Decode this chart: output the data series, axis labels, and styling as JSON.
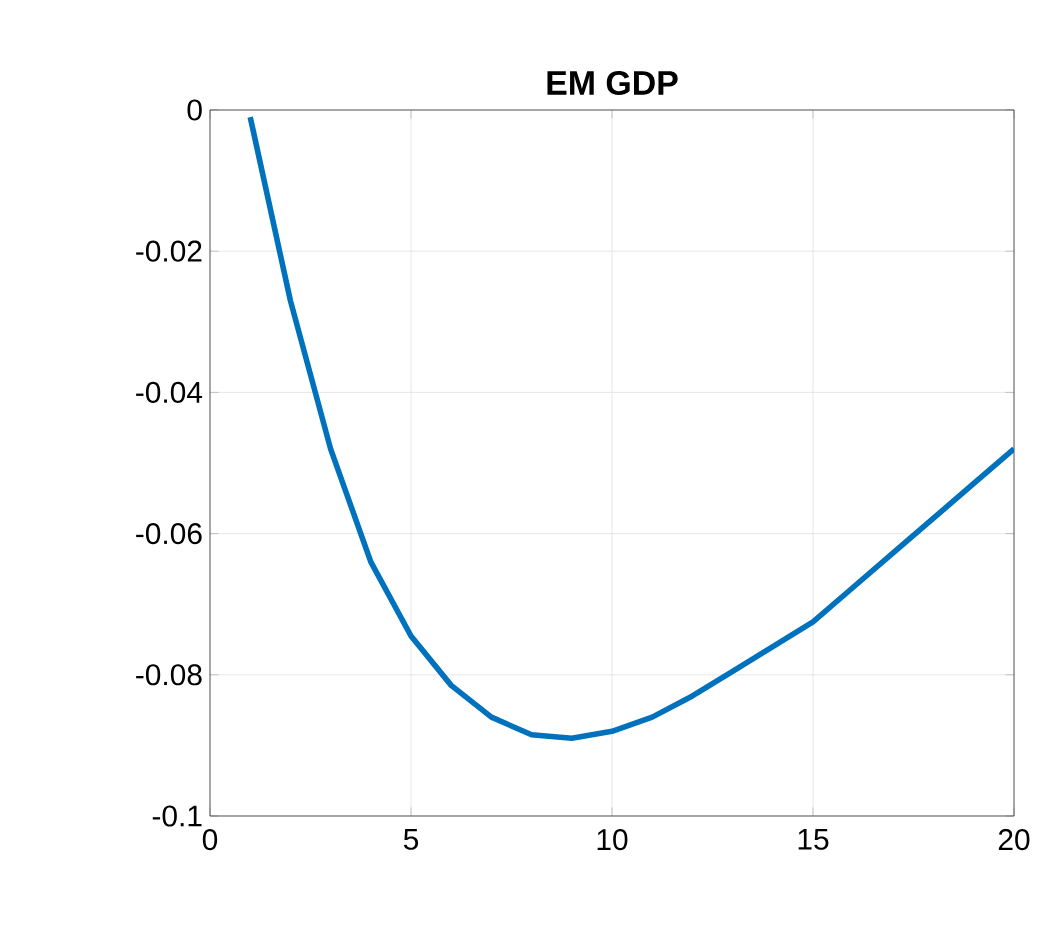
{
  "chart_data": {
    "type": "line",
    "title": "EM GDP",
    "x": [
      1,
      2,
      3,
      4,
      5,
      6,
      7,
      8,
      9,
      10,
      11,
      12,
      13,
      14,
      15,
      16,
      17,
      18,
      19,
      20
    ],
    "values": [
      -0.001,
      -0.027,
      -0.048,
      -0.064,
      -0.0745,
      -0.0815,
      -0.086,
      -0.0885,
      -0.089,
      -0.088,
      -0.086,
      -0.083,
      -0.0795,
      -0.076,
      -0.0725,
      -0.0676,
      -0.0627,
      -0.0578,
      -0.0529,
      -0.048
    ],
    "color": "#0072bd",
    "xlim": [
      0,
      20
    ],
    "xticks": [
      0,
      5,
      10,
      15,
      20
    ],
    "ylim": [
      -0.1,
      0
    ],
    "yticks": [
      -0.1,
      -0.08,
      -0.06,
      -0.04,
      -0.02,
      0
    ],
    "grid": true
  }
}
